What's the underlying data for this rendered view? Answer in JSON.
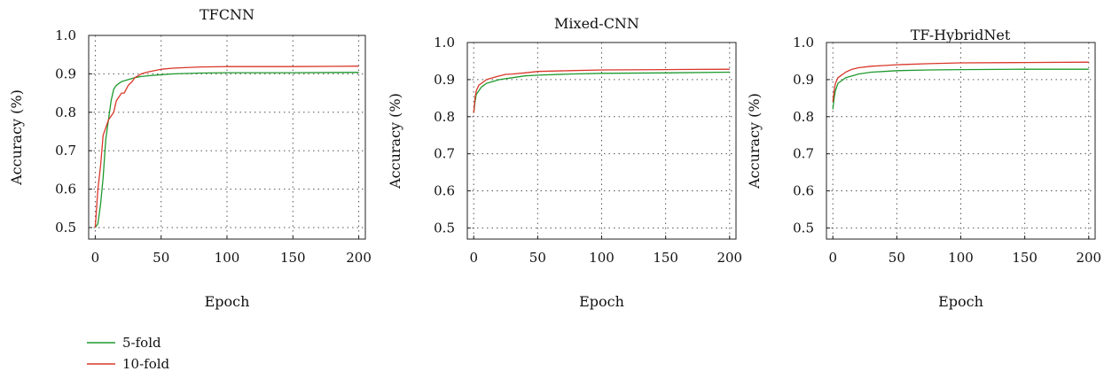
{
  "colors": {
    "5-fold": "#1f9a2e",
    "10-fold": "#d9372a"
  },
  "legend": {
    "placement": "bottom-left",
    "items": [
      {
        "label": "5-fold",
        "color": "#1f9a2e"
      },
      {
        "label": "10-fold",
        "color": "#d9372a"
      }
    ]
  },
  "chart_data": [
    {
      "type": "line",
      "title": "TFCNN",
      "xlabel": "Epoch",
      "ylabel": "Accuracy (%)",
      "xlim": [
        -5,
        205
      ],
      "ylim": [
        0.47,
        1.0
      ],
      "xticks": [
        0,
        50,
        100,
        150,
        200
      ],
      "yticks": [
        0.5,
        0.6,
        0.7,
        0.8,
        0.9,
        1.0
      ],
      "ytick_labels": [
        "0.5",
        "0.6",
        "0.7",
        "0.8",
        "0.9",
        "1.0"
      ],
      "grid": true,
      "series": [
        {
          "name": "5-fold",
          "x": [
            0,
            2,
            4,
            6,
            8,
            10,
            12,
            14,
            16,
            18,
            20,
            25,
            30,
            35,
            40,
            50,
            60,
            80,
            100,
            150,
            200
          ],
          "y": [
            0.5,
            0.51,
            0.56,
            0.63,
            0.73,
            0.78,
            0.83,
            0.86,
            0.87,
            0.875,
            0.88,
            0.885,
            0.89,
            0.893,
            0.895,
            0.898,
            0.9,
            0.902,
            0.903,
            0.903,
            0.904
          ]
        },
        {
          "name": "10-fold",
          "x": [
            0,
            2,
            4,
            6,
            8,
            10,
            12,
            14,
            16,
            18,
            20,
            22,
            25,
            28,
            30,
            35,
            40,
            50,
            60,
            80,
            100,
            150,
            200
          ],
          "y": [
            0.5,
            0.6,
            0.66,
            0.74,
            0.76,
            0.78,
            0.79,
            0.8,
            0.83,
            0.84,
            0.85,
            0.85,
            0.87,
            0.88,
            0.89,
            0.9,
            0.905,
            0.912,
            0.915,
            0.918,
            0.919,
            0.919,
            0.92
          ]
        }
      ]
    },
    {
      "type": "line",
      "title": "Mixed-CNN",
      "xlabel": "Epoch",
      "ylabel": "Accuracy (%)",
      "xlim": [
        -5,
        205
      ],
      "ylim": [
        0.47,
        1.0
      ],
      "xticks": [
        0,
        50,
        100,
        150,
        200
      ],
      "yticks": [
        0.5,
        0.6,
        0.7,
        0.8,
        0.9,
        1.0
      ],
      "ytick_labels": [
        "0.5",
        "0.6",
        "0.7",
        "0.8",
        "0.9",
        "1.0"
      ],
      "grid": true,
      "series": [
        {
          "name": "5-fold",
          "x": [
            0,
            1,
            2,
            4,
            6,
            8,
            10,
            15,
            20,
            30,
            40,
            50,
            75,
            100,
            150,
            200
          ],
          "y": [
            0.81,
            0.84,
            0.86,
            0.87,
            0.88,
            0.885,
            0.89,
            0.895,
            0.9,
            0.905,
            0.91,
            0.912,
            0.915,
            0.917,
            0.918,
            0.92
          ]
        },
        {
          "name": "10-fold",
          "x": [
            0,
            1,
            2,
            4,
            6,
            8,
            10,
            15,
            20,
            25,
            30,
            40,
            50,
            75,
            100,
            150,
            200
          ],
          "y": [
            0.81,
            0.85,
            0.87,
            0.885,
            0.89,
            0.895,
            0.9,
            0.905,
            0.91,
            0.914,
            0.915,
            0.918,
            0.922,
            0.924,
            0.926,
            0.927,
            0.928
          ]
        }
      ]
    },
    {
      "type": "line",
      "title": "TF-HybridNet",
      "xlabel": "Epoch",
      "ylabel": "Accuracy (%)",
      "xlim": [
        -5,
        205
      ],
      "ylim": [
        0.47,
        1.0
      ],
      "xticks": [
        0,
        50,
        100,
        150,
        200
      ],
      "yticks": [
        0.5,
        0.6,
        0.7,
        0.8,
        0.9,
        1.0
      ],
      "ytick_labels": [
        "0.5",
        "0.6",
        "0.7",
        "0.8",
        "0.9",
        "1.0"
      ],
      "grid": true,
      "series": [
        {
          "name": "5-fold",
          "x": [
            0,
            1,
            2,
            4,
            6,
            8,
            10,
            15,
            20,
            30,
            40,
            50,
            75,
            100,
            150,
            200
          ],
          "y": [
            0.82,
            0.85,
            0.87,
            0.89,
            0.895,
            0.9,
            0.905,
            0.91,
            0.915,
            0.92,
            0.922,
            0.924,
            0.926,
            0.927,
            0.928,
            0.928
          ]
        },
        {
          "name": "10-fold",
          "x": [
            0,
            1,
            2,
            4,
            6,
            8,
            10,
            15,
            20,
            30,
            40,
            50,
            75,
            100,
            150,
            200
          ],
          "y": [
            0.84,
            0.87,
            0.89,
            0.905,
            0.91,
            0.915,
            0.92,
            0.928,
            0.932,
            0.936,
            0.938,
            0.94,
            0.943,
            0.945,
            0.946,
            0.947
          ]
        }
      ]
    }
  ]
}
